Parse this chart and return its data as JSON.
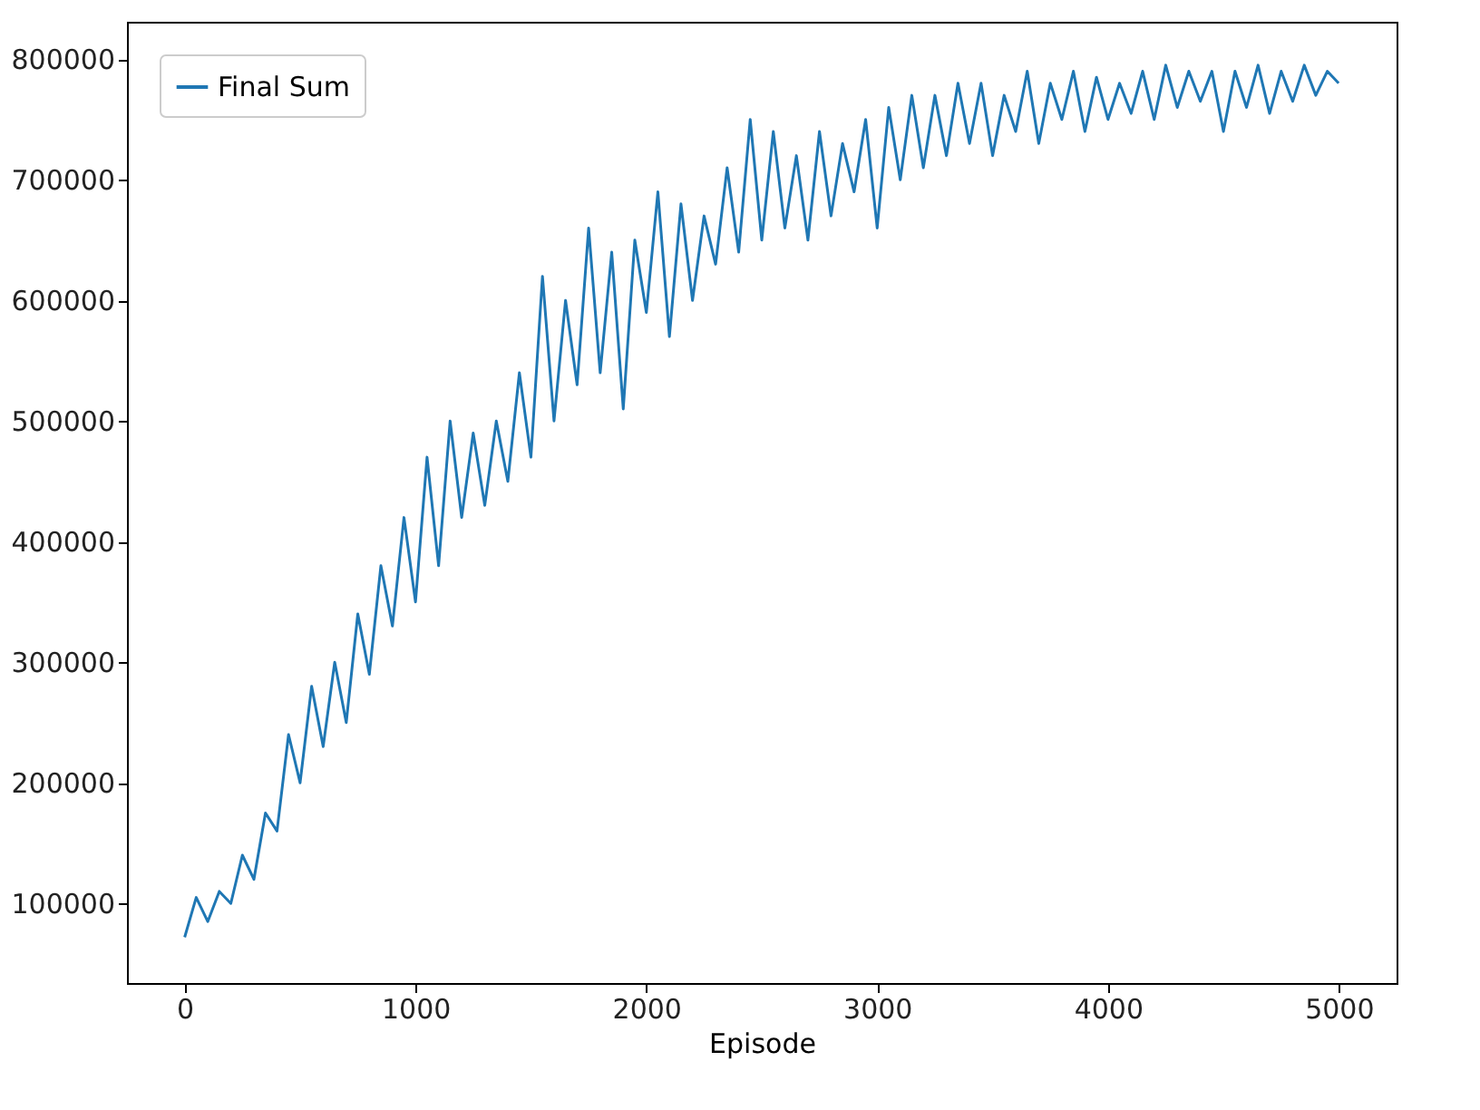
{
  "chart_data": {
    "type": "line",
    "xlabel": "Episode",
    "x": [
      0,
      50,
      100,
      150,
      200,
      250,
      300,
      350,
      400,
      450,
      500,
      550,
      600,
      650,
      700,
      750,
      800,
      850,
      900,
      950,
      1000,
      1050,
      1100,
      1150,
      1200,
      1250,
      1300,
      1350,
      1400,
      1450,
      1500,
      1550,
      1600,
      1650,
      1700,
      1750,
      1800,
      1850,
      1900,
      1950,
      2000,
      2050,
      2100,
      2150,
      2200,
      2250,
      2300,
      2350,
      2400,
      2450,
      2500,
      2550,
      2600,
      2650,
      2700,
      2750,
      2800,
      2850,
      2900,
      2950,
      3000,
      3050,
      3100,
      3150,
      3200,
      3250,
      3300,
      3350,
      3400,
      3450,
      3500,
      3550,
      3600,
      3650,
      3700,
      3750,
      3800,
      3850,
      3900,
      3950,
      4000,
      4050,
      4100,
      4150,
      4200,
      4250,
      4300,
      4350,
      4400,
      4450,
      4500,
      4550,
      4600,
      4650,
      4700,
      4750,
      4800,
      4850,
      4900,
      4950,
      4999
    ],
    "series": [
      {
        "name": "Final Sum",
        "color": "#1f77b4",
        "values": [
          72000,
          105000,
          85000,
          110000,
          100000,
          140000,
          120000,
          175000,
          160000,
          240000,
          200000,
          280000,
          230000,
          300000,
          250000,
          340000,
          290000,
          380000,
          330000,
          420000,
          350000,
          470000,
          380000,
          500000,
          420000,
          490000,
          430000,
          500000,
          450000,
          540000,
          470000,
          620000,
          500000,
          600000,
          530000,
          660000,
          540000,
          640000,
          510000,
          650000,
          590000,
          690000,
          570000,
          680000,
          600000,
          670000,
          630000,
          710000,
          640000,
          750000,
          650000,
          740000,
          660000,
          720000,
          650000,
          740000,
          670000,
          730000,
          690000,
          750000,
          660000,
          760000,
          700000,
          770000,
          710000,
          770000,
          720000,
          780000,
          730000,
          780000,
          720000,
          770000,
          740000,
          790000,
          730000,
          780000,
          750000,
          790000,
          740000,
          785000,
          750000,
          780000,
          755000,
          790000,
          750000,
          795000,
          760000,
          790000,
          765000,
          790000,
          740000,
          790000,
          760000,
          795000,
          755000,
          790000,
          765000,
          795000,
          770000,
          790000,
          780000
        ]
      }
    ],
    "xlim": [
      -250,
      5250
    ],
    "ylim": [
      34000,
      831000
    ],
    "xticks": [
      0,
      1000,
      2000,
      3000,
      4000,
      5000
    ],
    "yticks": [
      100000,
      200000,
      300000,
      400000,
      500000,
      600000,
      700000,
      800000
    ],
    "legend": "top left",
    "grid": false,
    "line_style": "solid",
    "marker": "none"
  }
}
